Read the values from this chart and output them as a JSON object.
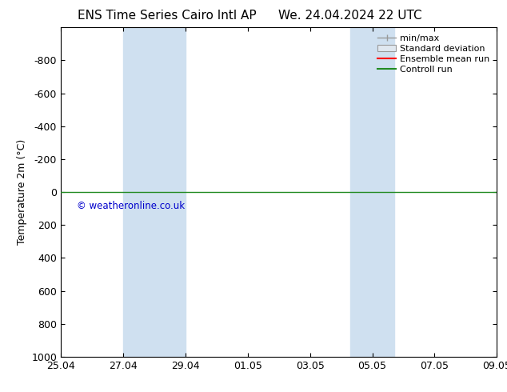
{
  "title_left": "ENS Time Series Cairo Intl AP",
  "title_right": "We. 24.04.2024 22 UTC",
  "ylabel": "Temperature 2m (°C)",
  "ylim_top": -1000,
  "ylim_bottom": 1000,
  "yticks": [
    -800,
    -600,
    -400,
    -200,
    0,
    200,
    400,
    600,
    800,
    1000
  ],
  "xtick_labels": [
    "25.04",
    "27.04",
    "29.04",
    "01.05",
    "03.05",
    "05.05",
    "07.05",
    "09.05"
  ],
  "xtick_positions": [
    0,
    2,
    4,
    6,
    8,
    10,
    12,
    14
  ],
  "x_total": 14,
  "shaded_bands": [
    {
      "x_start": 2.0,
      "x_end": 3.0
    },
    {
      "x_start": 3.0,
      "x_end": 4.0
    },
    {
      "x_start": 9.3,
      "x_end": 10.0
    },
    {
      "x_start": 10.0,
      "x_end": 10.7
    }
  ],
  "shade_color": "#cfe0f0",
  "control_run_y": 0,
  "control_run_color": "#228B22",
  "ensemble_mean_color": "#ff0000",
  "watermark_text": "© weatheronline.co.uk",
  "watermark_color": "#0000cc",
  "background_color": "#ffffff",
  "legend_labels": [
    "min/max",
    "Standard deviation",
    "Ensemble mean run",
    "Controll run"
  ],
  "legend_colors": [
    "#999999",
    "#bbbbbb",
    "#ff0000",
    "#228B22"
  ],
  "title_fontsize": 11,
  "axis_fontsize": 9,
  "tick_fontsize": 9
}
